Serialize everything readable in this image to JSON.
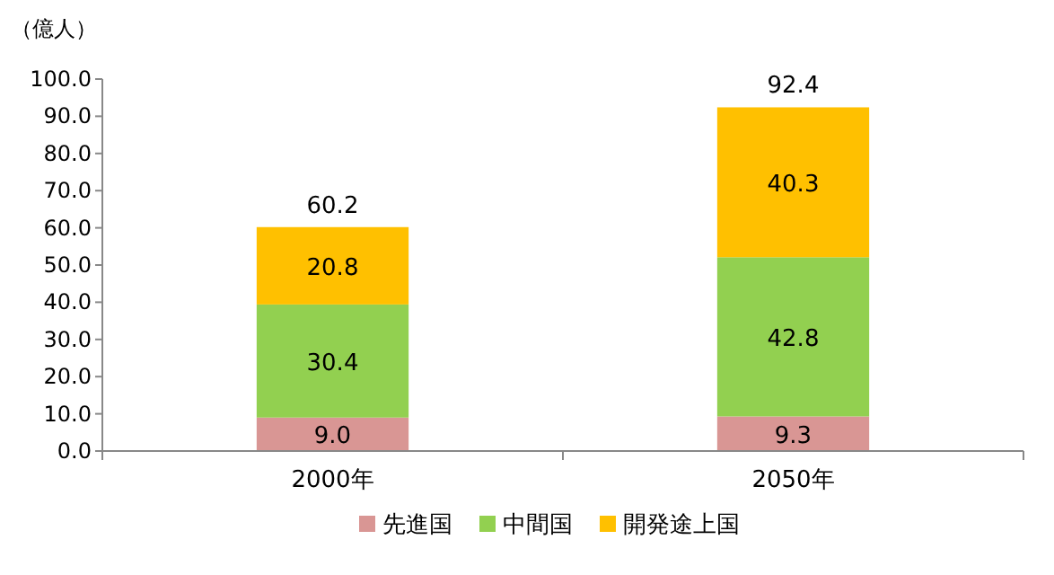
{
  "chart_data": {
    "type": "bar",
    "stacked": true,
    "ylabel": "（億人）",
    "categories": [
      "2000年",
      "2050年"
    ],
    "series": [
      {
        "name": "先進国",
        "color": "#d99694",
        "values": [
          9.0,
          9.3
        ],
        "value_labels": [
          "9.0",
          "9.3"
        ]
      },
      {
        "name": "中間国",
        "color": "#92d050",
        "values": [
          30.4,
          42.8
        ],
        "value_labels": [
          "30.4",
          "42.8"
        ]
      },
      {
        "name": "開発途上国",
        "color": "#ffc000",
        "values": [
          20.8,
          40.3
        ],
        "value_labels": [
          "20.8",
          "40.3"
        ]
      }
    ],
    "totals": [
      "60.2",
      "92.4"
    ],
    "ylim": [
      0,
      100
    ],
    "yticks": [
      {
        "value": 0,
        "label": "0.0"
      },
      {
        "value": 10,
        "label": "10.0"
      },
      {
        "value": 20,
        "label": "20.0"
      },
      {
        "value": 30,
        "label": "30.0"
      },
      {
        "value": 40,
        "label": "40.0"
      },
      {
        "value": 50,
        "label": "50.0"
      },
      {
        "value": 60,
        "label": "60.0"
      },
      {
        "value": 70,
        "label": "70.0"
      },
      {
        "value": 80,
        "label": "80.0"
      },
      {
        "value": 90,
        "label": "90.0"
      },
      {
        "value": 100,
        "label": "100.0"
      }
    ],
    "grid": false,
    "legend": "bottom"
  }
}
